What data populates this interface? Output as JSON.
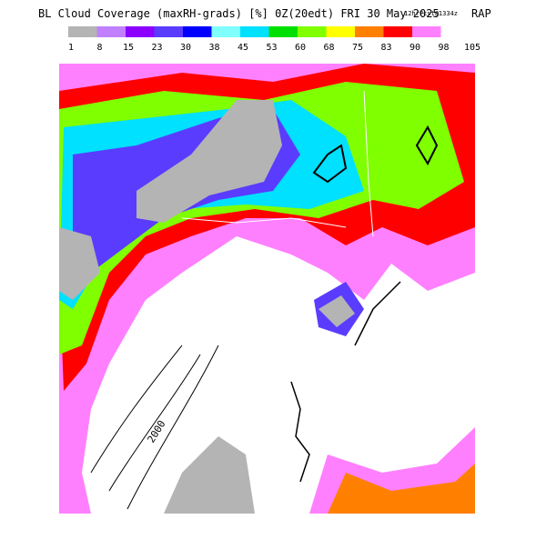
{
  "header": {
    "title": "BL Cloud Coverage (maxRH-grads) [%] 0Z(20edt) FRI 30 May 2025",
    "forecast": "12hrFcst@1334z",
    "model": "RAP"
  },
  "colorbar": {
    "colors": [
      "#b4b4b4",
      "#c080ff",
      "#8c00ff",
      "#5a3cff",
      "#0000ff",
      "#80ffff",
      "#00e0ff",
      "#00e000",
      "#80ff00",
      "#ffff00",
      "#ff8000",
      "#ff0000",
      "#ff80ff"
    ],
    "labels": [
      1,
      8,
      15,
      23,
      30,
      38,
      45,
      53,
      60,
      68,
      75,
      83,
      90,
      98,
      105
    ]
  },
  "map": {
    "contour_label": "2000"
  }
}
